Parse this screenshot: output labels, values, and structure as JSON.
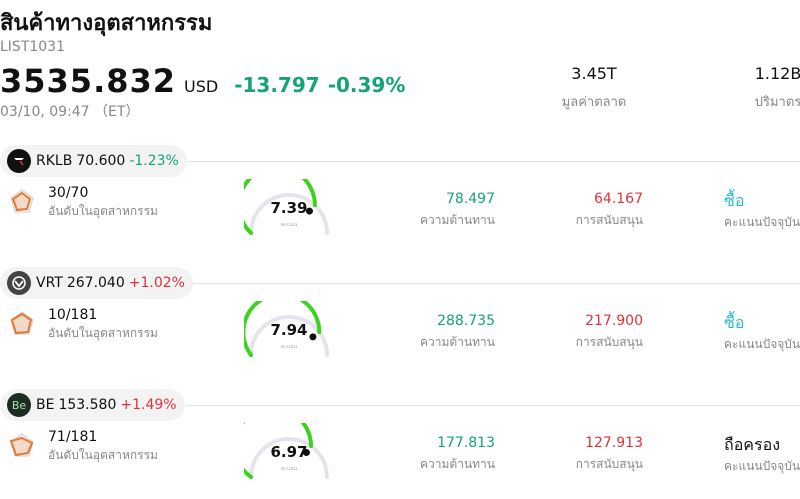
{
  "header": {
    "title": "สินค้าทางอุตสาหกรรม",
    "code": "LIST1031",
    "price": "3535.832",
    "currency": "USD",
    "change": "-13.797",
    "change_pct": "-0.39%",
    "datetime": "03/10, 09:47 （ET）",
    "market_cap": {
      "value": "3.45T",
      "label": "มูลค่าตลาด"
    },
    "volume": {
      "value": "1.12B",
      "label": "ปริมาตร"
    }
  },
  "stocks": [
    {
      "symbol": "RKLB",
      "price": "70.600",
      "change_pct": "-1.23%",
      "direction": "neg",
      "logo_bg": "#111111",
      "logo_icon": "rocket-lab-logo-icon",
      "rank": "30/70",
      "rank_label": "อันดับในอุตสาหกรรม",
      "score": "7.39",
      "score_caption": "คะแนน",
      "score_fraction": 0.739,
      "resistance": "78.497",
      "resistance_label": "ความต้านทาน",
      "support": "64.167",
      "support_label": "การสนับสนุน",
      "rating": "ซื้อ",
      "rating_type": "buy",
      "rating_label": "คะแนนปัจจุบัน"
    },
    {
      "symbol": "VRT",
      "price": "267.040",
      "change_pct": "+1.02%",
      "direction": "pos",
      "logo_bg": "#444444",
      "logo_icon": "vertiv-logo-icon",
      "rank": "10/181",
      "rank_label": "อันดับในอุตสาหกรรม",
      "score": "7.94",
      "score_caption": "คะแนน",
      "score_fraction": 0.794,
      "resistance": "288.735",
      "resistance_label": "ความต้านทาน",
      "support": "217.900",
      "support_label": "การสนับสนุน",
      "rating": "ซื้อ",
      "rating_type": "buy",
      "rating_label": "คะแนนปัจจุบัน"
    },
    {
      "symbol": "BE",
      "price": "153.580",
      "change_pct": "+1.49%",
      "direction": "pos",
      "logo_bg": "#1d2b22",
      "logo_icon": "bloom-energy-logo-icon",
      "logo_text": "Be",
      "rank": "71/181",
      "rank_label": "อันดับในอุตสาหกรรม",
      "score": "6.97",
      "score_caption": "คะแนน",
      "score_fraction": 0.697,
      "resistance": "177.813",
      "resistance_label": "ความต้านทาน",
      "support": "127.913",
      "support_label": "การสนับสนุน",
      "rating": "ถือครอง",
      "rating_type": "hold",
      "rating_label": "คะแนนปัจจุบัน"
    }
  ],
  "colors": {
    "down": "#15a37a",
    "up": "#e0323b",
    "buy": "#2bbbd0",
    "gauge_fill": "#3cd21e",
    "gauge_track": "#e4e4ec"
  }
}
